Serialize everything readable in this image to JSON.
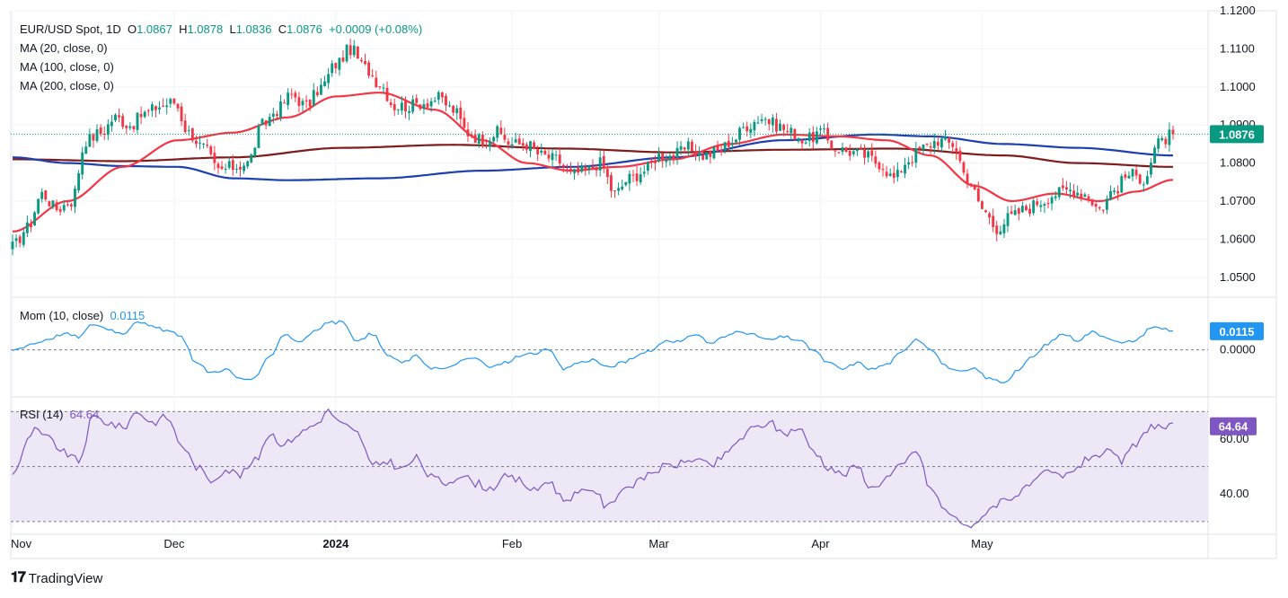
{
  "legend": {
    "symbol": "EUR/USD Spot, 1D",
    "open_label": "O",
    "open": "1.0867",
    "high_label": "H",
    "high": "1.0878",
    "low_label": "L",
    "low": "1.0836",
    "close_label": "C",
    "close": "1.0876",
    "change": "+0.0009 (+0.08%)",
    "ma20": "MA (20, close, 0)",
    "ma100": "MA (100, close, 0)",
    "ma200": "MA (200, close, 0)"
  },
  "mom_legend": {
    "label": "Mom (10, close)",
    "value": "0.0115"
  },
  "rsi_legend": {
    "label": "RSI (14)",
    "value": "64.64"
  },
  "brand": {
    "name": "TradingView"
  },
  "colors": {
    "up": "#089981",
    "down": "#f23645",
    "ma20": "#f23645",
    "ma100": "#1e40af",
    "ma200": "#7f1d1d",
    "mom": "#2196f3",
    "rsi": "#7e57c2",
    "rsi_band": "#ede7f6"
  },
  "chart_data": [
    {
      "type": "candlestick",
      "title": "EUR/USD Spot, 1D",
      "x_ticks": [
        "Nov",
        "Dec",
        "2024",
        "Feb",
        "Mar",
        "Apr",
        "May"
      ],
      "y_ticks": [
        "1.1200",
        "1.1100",
        "1.1000",
        "1.0900",
        "1.0800",
        "1.0700",
        "1.0600",
        "1.0500"
      ],
      "ylim": [
        1.045,
        1.12
      ],
      "current_price": "1.0876",
      "ma_anchors": {
        "ma20": [
          [
            0,
            1.062
          ],
          [
            15,
            1.07
          ],
          [
            30,
            1.079
          ],
          [
            45,
            1.086
          ],
          [
            60,
            1.088
          ],
          [
            75,
            1.092
          ],
          [
            88,
            1.0975
          ],
          [
            100,
            1.0985
          ],
          [
            115,
            1.094
          ],
          [
            128,
            1.086
          ],
          [
            140,
            1.08
          ],
          [
            152,
            1.078
          ],
          [
            165,
            1.079
          ],
          [
            180,
            1.081
          ],
          [
            195,
            1.085
          ],
          [
            210,
            1.0875
          ],
          [
            225,
            1.087
          ],
          [
            238,
            1.086
          ],
          [
            250,
            1.082
          ],
          [
            262,
            1.074
          ],
          [
            272,
            1.07
          ],
          [
            284,
            1.072
          ],
          [
            296,
            1.07
          ],
          [
            306,
            1.0725
          ],
          [
            316,
            1.0756
          ]
        ],
        "ma100": [
          [
            0,
            1.0815
          ],
          [
            15,
            1.08
          ],
          [
            30,
            1.0792
          ],
          [
            45,
            1.079
          ],
          [
            60,
            1.076
          ],
          [
            75,
            1.0755
          ],
          [
            100,
            1.076
          ],
          [
            128,
            1.078
          ],
          [
            152,
            1.079
          ],
          [
            180,
            1.0815
          ],
          [
            210,
            1.086
          ],
          [
            235,
            1.0875
          ],
          [
            250,
            1.087
          ],
          [
            270,
            1.085
          ],
          [
            290,
            1.084
          ],
          [
            316,
            1.082
          ]
        ],
        "ma200": [
          [
            0,
            1.081
          ],
          [
            30,
            1.0805
          ],
          [
            60,
            1.0815
          ],
          [
            90,
            1.084
          ],
          [
            120,
            1.0848
          ],
          [
            150,
            1.0838
          ],
          [
            180,
            1.0828
          ],
          [
            210,
            1.0835
          ],
          [
            240,
            1.0838
          ],
          [
            270,
            1.082
          ],
          [
            290,
            1.08
          ],
          [
            316,
            1.079
          ]
        ]
      },
      "price_anchors": [
        [
          0,
          1.058
        ],
        [
          4,
          1.063
        ],
        [
          8,
          1.072
        ],
        [
          12,
          1.068
        ],
        [
          16,
          1.07
        ],
        [
          20,
          1.086
        ],
        [
          24,
          1.088
        ],
        [
          28,
          1.092
        ],
        [
          32,
          1.09
        ],
        [
          36,
          1.093
        ],
        [
          40,
          1.095
        ],
        [
          44,
          1.096
        ],
        [
          48,
          1.088
        ],
        [
          52,
          1.084
        ],
        [
          56,
          1.078
        ],
        [
          60,
          1.079
        ],
        [
          64,
          1.08
        ],
        [
          68,
          1.09
        ],
        [
          72,
          1.094
        ],
        [
          76,
          1.098
        ],
        [
          80,
          1.095
        ],
        [
          84,
          1.1
        ],
        [
          88,
          1.106
        ],
        [
          92,
          1.11
        ],
        [
          96,
          1.105
        ],
        [
          100,
          1.101
        ],
        [
          104,
          1.095
        ],
        [
          108,
          1.095
        ],
        [
          112,
          1.096
        ],
        [
          116,
          1.097
        ],
        [
          120,
          1.094
        ],
        [
          124,
          1.088
        ],
        [
          128,
          1.086
        ],
        [
          132,
          1.088
        ],
        [
          136,
          1.085
        ],
        [
          140,
          1.085
        ],
        [
          144,
          1.082
        ],
        [
          148,
          1.081
        ],
        [
          152,
          1.077
        ],
        [
          156,
          1.078
        ],
        [
          160,
          1.08
        ],
        [
          164,
          1.072
        ],
        [
          168,
          1.076
        ],
        [
          172,
          1.078
        ],
        [
          176,
          1.082
        ],
        [
          180,
          1.082
        ],
        [
          184,
          1.084
        ],
        [
          188,
          1.082
        ],
        [
          192,
          1.083
        ],
        [
          196,
          1.086
        ],
        [
          200,
          1.09
        ],
        [
          204,
          1.092
        ],
        [
          208,
          1.09
        ],
        [
          212,
          1.088
        ],
        [
          216,
          1.086
        ],
        [
          220,
          1.088
        ],
        [
          224,
          1.084
        ],
        [
          228,
          1.083
        ],
        [
          232,
          1.082
        ],
        [
          236,
          1.08
        ],
        [
          240,
          1.076
        ],
        [
          244,
          1.081
        ],
        [
          248,
          1.084
        ],
        [
          252,
          1.086
        ],
        [
          256,
          1.085
        ],
        [
          260,
          1.076
        ],
        [
          264,
          1.068
        ],
        [
          268,
          1.063
        ],
        [
          272,
          1.066
        ],
        [
          276,
          1.068
        ],
        [
          280,
          1.07
        ],
        [
          284,
          1.072
        ],
        [
          288,
          1.073
        ],
        [
          292,
          1.072
        ],
        [
          296,
          1.068
        ],
        [
          300,
          1.073
        ],
        [
          304,
          1.077
        ],
        [
          308,
          1.076
        ],
        [
          312,
          1.085
        ],
        [
          316,
          1.0876
        ]
      ]
    },
    {
      "type": "line",
      "title": "Mom (10, close)",
      "y_ticks": [
        "0.0000"
      ],
      "current_value": "0.0115",
      "ylim": [
        -0.028,
        0.032
      ],
      "anchors": [
        [
          0,
          0.0
        ],
        [
          6,
          0.004
        ],
        [
          10,
          0.007
        ],
        [
          14,
          0.01
        ],
        [
          18,
          0.008
        ],
        [
          22,
          0.016
        ],
        [
          26,
          0.013
        ],
        [
          30,
          0.01
        ],
        [
          34,
          0.018
        ],
        [
          38,
          0.014
        ],
        [
          42,
          0.012
        ],
        [
          46,
          0.008
        ],
        [
          50,
          -0.008
        ],
        [
          54,
          -0.014
        ],
        [
          58,
          -0.012
        ],
        [
          62,
          -0.018
        ],
        [
          66,
          -0.018
        ],
        [
          70,
          -0.004
        ],
        [
          74,
          0.01
        ],
        [
          78,
          0.005
        ],
        [
          82,
          0.011
        ],
        [
          86,
          0.017
        ],
        [
          90,
          0.017
        ],
        [
          94,
          0.005
        ],
        [
          98,
          0.01
        ],
        [
          102,
          -0.003
        ],
        [
          106,
          -0.008
        ],
        [
          110,
          -0.004
        ],
        [
          114,
          -0.011
        ],
        [
          118,
          -0.012
        ],
        [
          122,
          -0.007
        ],
        [
          126,
          -0.005
        ],
        [
          130,
          -0.011
        ],
        [
          134,
          -0.008
        ],
        [
          138,
          -0.004
        ],
        [
          142,
          -0.002
        ],
        [
          146,
          0.0
        ],
        [
          150,
          -0.012
        ],
        [
          154,
          -0.008
        ],
        [
          158,
          -0.006
        ],
        [
          162,
          -0.011
        ],
        [
          166,
          -0.008
        ],
        [
          170,
          -0.004
        ],
        [
          174,
          0.0
        ],
        [
          178,
          0.006
        ],
        [
          182,
          0.005
        ],
        [
          186,
          0.01
        ],
        [
          190,
          0.004
        ],
        [
          194,
          0.008
        ],
        [
          198,
          0.012
        ],
        [
          202,
          0.009
        ],
        [
          206,
          0.006
        ],
        [
          210,
          0.008
        ],
        [
          214,
          0.006
        ],
        [
          218,
          0.0
        ],
        [
          222,
          -0.008
        ],
        [
          226,
          -0.012
        ],
        [
          230,
          -0.008
        ],
        [
          234,
          -0.012
        ],
        [
          238,
          -0.009
        ],
        [
          242,
          -0.002
        ],
        [
          246,
          0.007
        ],
        [
          250,
          0.001
        ],
        [
          254,
          -0.01
        ],
        [
          258,
          -0.014
        ],
        [
          262,
          -0.012
        ],
        [
          266,
          -0.018
        ],
        [
          270,
          -0.02
        ],
        [
          274,
          -0.012
        ],
        [
          278,
          -0.004
        ],
        [
          282,
          0.004
        ],
        [
          286,
          0.01
        ],
        [
          290,
          0.006
        ],
        [
          294,
          0.011
        ],
        [
          298,
          0.008
        ],
        [
          302,
          0.004
        ],
        [
          306,
          0.006
        ],
        [
          310,
          0.014
        ],
        [
          314,
          0.013
        ],
        [
          316,
          0.0115
        ]
      ]
    },
    {
      "type": "line",
      "title": "RSI (14)",
      "y_ticks": [
        "60.00",
        "40.00"
      ],
      "current_value": "64.64",
      "ylim": [
        27,
        75
      ],
      "band": [
        30,
        70
      ],
      "midline": 50,
      "anchors": [
        [
          0,
          48
        ],
        [
          6,
          63
        ],
        [
          10,
          60
        ],
        [
          14,
          55
        ],
        [
          18,
          52
        ],
        [
          22,
          68
        ],
        [
          26,
          66
        ],
        [
          30,
          64
        ],
        [
          34,
          70
        ],
        [
          38,
          66
        ],
        [
          42,
          68
        ],
        [
          46,
          58
        ],
        [
          50,
          50
        ],
        [
          54,
          45
        ],
        [
          58,
          49
        ],
        [
          62,
          47
        ],
        [
          66,
          52
        ],
        [
          70,
          62
        ],
        [
          74,
          58
        ],
        [
          78,
          62
        ],
        [
          82,
          65
        ],
        [
          86,
          70
        ],
        [
          90,
          65
        ],
        [
          94,
          62
        ],
        [
          98,
          50
        ],
        [
          102,
          52
        ],
        [
          106,
          49
        ],
        [
          110,
          53
        ],
        [
          114,
          46
        ],
        [
          118,
          44
        ],
        [
          122,
          47
        ],
        [
          126,
          44
        ],
        [
          130,
          42
        ],
        [
          134,
          46
        ],
        [
          138,
          45
        ],
        [
          142,
          41
        ],
        [
          146,
          45
        ],
        [
          150,
          38
        ],
        [
          154,
          40
        ],
        [
          158,
          42
        ],
        [
          162,
          35
        ],
        [
          166,
          42
        ],
        [
          170,
          44
        ],
        [
          174,
          48
        ],
        [
          178,
          50
        ],
        [
          182,
          51
        ],
        [
          186,
          53
        ],
        [
          190,
          50
        ],
        [
          194,
          54
        ],
        [
          198,
          60
        ],
        [
          202,
          64
        ],
        [
          206,
          66
        ],
        [
          210,
          62
        ],
        [
          214,
          64
        ],
        [
          218,
          56
        ],
        [
          222,
          50
        ],
        [
          226,
          47
        ],
        [
          230,
          50
        ],
        [
          234,
          42
        ],
        [
          238,
          46
        ],
        [
          242,
          50
        ],
        [
          246,
          56
        ],
        [
          250,
          42
        ],
        [
          254,
          34
        ],
        [
          258,
          30
        ],
        [
          262,
          28
        ],
        [
          266,
          35
        ],
        [
          270,
          38
        ],
        [
          274,
          40
        ],
        [
          278,
          44
        ],
        [
          282,
          48
        ],
        [
          286,
          46
        ],
        [
          290,
          50
        ],
        [
          294,
          54
        ],
        [
          298,
          55
        ],
        [
          302,
          52
        ],
        [
          306,
          58
        ],
        [
          310,
          65
        ],
        [
          314,
          64
        ],
        [
          316,
          64.64
        ]
      ]
    }
  ]
}
